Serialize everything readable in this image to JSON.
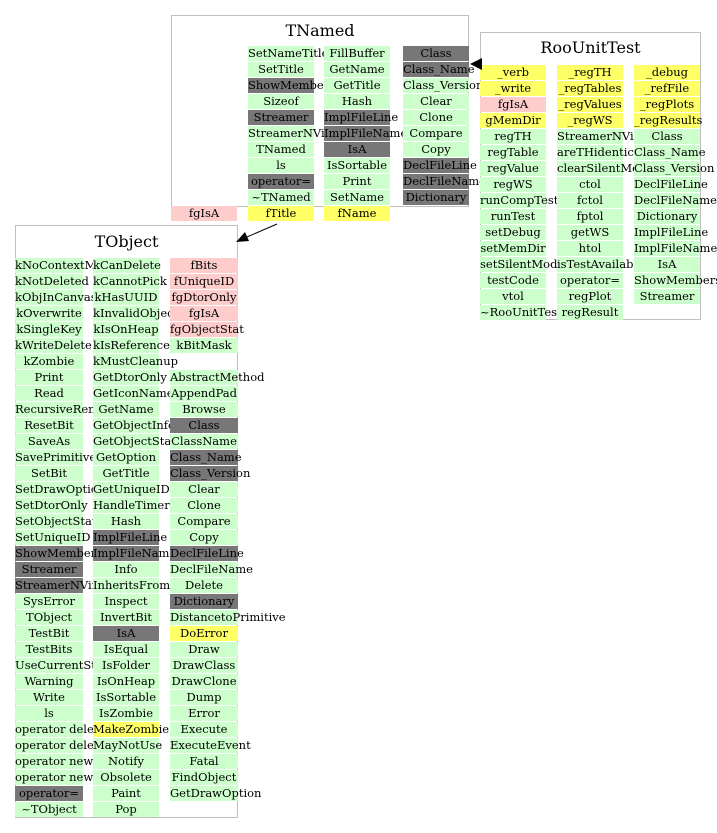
{
  "colors": {
    "public": "#ccffcc",
    "inherited": "#777777",
    "private": "#ffcccc",
    "protected": "#ffff66",
    "border": "#bfbfbf"
  },
  "classes": {
    "tnamed": {
      "title": "TNamed",
      "columns": [
        [
          {
            "t": "SetNameTitle",
            "c": "green"
          },
          {
            "t": "SetTitle",
            "c": "green"
          },
          {
            "t": "ShowMembers",
            "c": "gray"
          },
          {
            "t": "Sizeof",
            "c": "green"
          },
          {
            "t": "Streamer",
            "c": "gray"
          },
          {
            "t": "StreamerNVirtual",
            "c": "green"
          },
          {
            "t": "TNamed",
            "c": "green"
          },
          {
            "t": "ls",
            "c": "green"
          },
          {
            "t": "operator=",
            "c": "gray"
          },
          {
            "t": "~TNamed",
            "c": "green"
          },
          {
            "t": "fTitle",
            "c": "yellow"
          }
        ],
        [
          {
            "t": "FillBuffer",
            "c": "green"
          },
          {
            "t": "GetName",
            "c": "green"
          },
          {
            "t": "GetTitle",
            "c": "green"
          },
          {
            "t": "Hash",
            "c": "green"
          },
          {
            "t": "ImplFileLine",
            "c": "gray"
          },
          {
            "t": "ImplFileName",
            "c": "gray"
          },
          {
            "t": "IsA",
            "c": "gray"
          },
          {
            "t": "IsSortable",
            "c": "green"
          },
          {
            "t": "Print",
            "c": "green"
          },
          {
            "t": "SetName",
            "c": "green"
          },
          {
            "t": "fName",
            "c": "yellow"
          }
        ],
        [
          {
            "t": "Class",
            "c": "gray"
          },
          {
            "t": "Class_Name",
            "c": "gray"
          },
          {
            "t": "Class_Version",
            "c": "green"
          },
          {
            "t": "Clear",
            "c": "green"
          },
          {
            "t": "Clone",
            "c": "green"
          },
          {
            "t": "Compare",
            "c": "green"
          },
          {
            "t": "Copy",
            "c": "green"
          },
          {
            "t": "DeclFileLine",
            "c": "gray"
          },
          {
            "t": "DeclFileName",
            "c": "gray"
          },
          {
            "t": "Dictionary",
            "c": "gray"
          }
        ]
      ],
      "outside": {
        "t": "fgIsA",
        "c": "pink"
      }
    },
    "roounittest": {
      "title": "RooUnitTest",
      "columns": [
        [
          {
            "t": "_verb",
            "c": "yellow"
          },
          {
            "t": "_write",
            "c": "yellow"
          },
          {
            "t": "fgIsA",
            "c": "pink"
          },
          {
            "t": "gMemDir",
            "c": "yellow"
          },
          {
            "t": "regTH",
            "c": "green"
          },
          {
            "t": "regTable",
            "c": "green"
          },
          {
            "t": "regValue",
            "c": "green"
          },
          {
            "t": "regWS",
            "c": "green"
          },
          {
            "t": "runCompTests",
            "c": "green"
          },
          {
            "t": "runTest",
            "c": "green"
          },
          {
            "t": "setDebug",
            "c": "green"
          },
          {
            "t": "setMemDir",
            "c": "green"
          },
          {
            "t": "setSilentMode",
            "c": "green"
          },
          {
            "t": "testCode",
            "c": "green"
          },
          {
            "t": "vtol",
            "c": "green"
          },
          {
            "t": "~RooUnitTest",
            "c": "green"
          }
        ],
        [
          {
            "t": "_regTH",
            "c": "yellow"
          },
          {
            "t": "_regTables",
            "c": "yellow"
          },
          {
            "t": "_regValues",
            "c": "yellow"
          },
          {
            "t": "_regWS",
            "c": "yellow"
          },
          {
            "t": "StreamerNVirtual",
            "c": "green"
          },
          {
            "t": "areTHidentical",
            "c": "green"
          },
          {
            "t": "clearSilentMode",
            "c": "green"
          },
          {
            "t": "ctol",
            "c": "green"
          },
          {
            "t": "fctol",
            "c": "green"
          },
          {
            "t": "fptol",
            "c": "green"
          },
          {
            "t": "getWS",
            "c": "green"
          },
          {
            "t": "htol",
            "c": "green"
          },
          {
            "t": "isTestAvailable",
            "c": "green"
          },
          {
            "t": "operator=",
            "c": "green"
          },
          {
            "t": "regPlot",
            "c": "green"
          },
          {
            "t": "regResult",
            "c": "green"
          }
        ],
        [
          {
            "t": "_debug",
            "c": "yellow"
          },
          {
            "t": "_refFile",
            "c": "yellow"
          },
          {
            "t": "_regPlots",
            "c": "yellow"
          },
          {
            "t": "_regResults",
            "c": "yellow"
          },
          {
            "t": "Class",
            "c": "green"
          },
          {
            "t": "Class_Name",
            "c": "green"
          },
          {
            "t": "Class_Version",
            "c": "green"
          },
          {
            "t": "DeclFileLine",
            "c": "green"
          },
          {
            "t": "DeclFileName",
            "c": "green"
          },
          {
            "t": "Dictionary",
            "c": "green"
          },
          {
            "t": "ImplFileLine",
            "c": "green"
          },
          {
            "t": "ImplFileName",
            "c": "green"
          },
          {
            "t": "IsA",
            "c": "green"
          },
          {
            "t": "ShowMembers",
            "c": "green"
          },
          {
            "t": "Streamer",
            "c": "green"
          }
        ]
      ]
    },
    "tobject": {
      "title": "TObject",
      "columns": [
        [
          {
            "t": "kNoContextMenu",
            "c": "green"
          },
          {
            "t": "kNotDeleted",
            "c": "green"
          },
          {
            "t": "kObjInCanvas",
            "c": "green"
          },
          {
            "t": "kOverwrite",
            "c": "green"
          },
          {
            "t": "kSingleKey",
            "c": "green"
          },
          {
            "t": "kWriteDelete",
            "c": "green"
          },
          {
            "t": "kZombie",
            "c": "green"
          },
          {
            "t": "Print",
            "c": "green"
          },
          {
            "t": "Read",
            "c": "green"
          },
          {
            "t": "RecursiveRemove",
            "c": "green"
          },
          {
            "t": "ResetBit",
            "c": "green"
          },
          {
            "t": "SaveAs",
            "c": "green"
          },
          {
            "t": "SavePrimitive",
            "c": "green"
          },
          {
            "t": "SetBit",
            "c": "green"
          },
          {
            "t": "SetDrawOption",
            "c": "green"
          },
          {
            "t": "SetDtorOnly",
            "c": "green"
          },
          {
            "t": "SetObjectStat",
            "c": "green"
          },
          {
            "t": "SetUniqueID",
            "c": "green"
          },
          {
            "t": "ShowMembers",
            "c": "gray"
          },
          {
            "t": "Streamer",
            "c": "gray"
          },
          {
            "t": "StreamerNVirtual",
            "c": "gray"
          },
          {
            "t": "SysError",
            "c": "green"
          },
          {
            "t": "TObject",
            "c": "green"
          },
          {
            "t": "TestBit",
            "c": "green"
          },
          {
            "t": "TestBits",
            "c": "green"
          },
          {
            "t": "UseCurrentStyle",
            "c": "green"
          },
          {
            "t": "Warning",
            "c": "green"
          },
          {
            "t": "Write",
            "c": "green"
          },
          {
            "t": "ls",
            "c": "green"
          },
          {
            "t": "operator delete",
            "c": "green"
          },
          {
            "t": "operator delete[]",
            "c": "green"
          },
          {
            "t": "operator new",
            "c": "green"
          },
          {
            "t": "operator new[]",
            "c": "green"
          },
          {
            "t": "operator=",
            "c": "gray"
          },
          {
            "t": "~TObject",
            "c": "green"
          }
        ],
        [
          {
            "t": "kCanDelete",
            "c": "green"
          },
          {
            "t": "kCannotPick",
            "c": "green"
          },
          {
            "t": "kHasUUID",
            "c": "green"
          },
          {
            "t": "kInvalidObject",
            "c": "green"
          },
          {
            "t": "kIsOnHeap",
            "c": "green"
          },
          {
            "t": "kIsReferenced",
            "c": "green"
          },
          {
            "t": "kMustCleanup",
            "c": "green"
          },
          {
            "t": "GetDtorOnly",
            "c": "green"
          },
          {
            "t": "GetIconName",
            "c": "green"
          },
          {
            "t": "GetName",
            "c": "green"
          },
          {
            "t": "GetObjectInfo",
            "c": "green"
          },
          {
            "t": "GetObjectStat",
            "c": "green"
          },
          {
            "t": "GetOption",
            "c": "green"
          },
          {
            "t": "GetTitle",
            "c": "green"
          },
          {
            "t": "GetUniqueID",
            "c": "green"
          },
          {
            "t": "HandleTimer",
            "c": "green"
          },
          {
            "t": "Hash",
            "c": "green"
          },
          {
            "t": "ImplFileLine",
            "c": "gray"
          },
          {
            "t": "ImplFileName",
            "c": "gray"
          },
          {
            "t": "Info",
            "c": "green"
          },
          {
            "t": "InheritsFrom",
            "c": "green"
          },
          {
            "t": "Inspect",
            "c": "green"
          },
          {
            "t": "InvertBit",
            "c": "green"
          },
          {
            "t": "IsA",
            "c": "gray"
          },
          {
            "t": "IsEqual",
            "c": "green"
          },
          {
            "t": "IsFolder",
            "c": "green"
          },
          {
            "t": "IsOnHeap",
            "c": "green"
          },
          {
            "t": "IsSortable",
            "c": "green"
          },
          {
            "t": "IsZombie",
            "c": "green"
          },
          {
            "t": "MakeZombie",
            "c": "yellow"
          },
          {
            "t": "MayNotUse",
            "c": "green"
          },
          {
            "t": "Notify",
            "c": "green"
          },
          {
            "t": "Obsolete",
            "c": "green"
          },
          {
            "t": "Paint",
            "c": "green"
          },
          {
            "t": "Pop",
            "c": "green"
          }
        ],
        [
          {
            "t": "fBits",
            "c": "pink"
          },
          {
            "t": "fUniqueID",
            "c": "pink"
          },
          {
            "t": "fgDtorOnly",
            "c": "pink"
          },
          {
            "t": "fgIsA",
            "c": "pink"
          },
          {
            "t": "fgObjectStat",
            "c": "pink"
          },
          {
            "t": "kBitMask",
            "c": "green"
          },
          {
            "t": "",
            "c": "none"
          },
          {
            "t": "AbstractMethod",
            "c": "green"
          },
          {
            "t": "AppendPad",
            "c": "green"
          },
          {
            "t": "Browse",
            "c": "green"
          },
          {
            "t": "Class",
            "c": "gray"
          },
          {
            "t": "ClassName",
            "c": "green"
          },
          {
            "t": "Class_Name",
            "c": "gray"
          },
          {
            "t": "Class_Version",
            "c": "gray"
          },
          {
            "t": "Clear",
            "c": "green"
          },
          {
            "t": "Clone",
            "c": "green"
          },
          {
            "t": "Compare",
            "c": "green"
          },
          {
            "t": "Copy",
            "c": "green"
          },
          {
            "t": "DeclFileLine",
            "c": "gray"
          },
          {
            "t": "DeclFileName",
            "c": "green"
          },
          {
            "t": "Delete",
            "c": "green"
          },
          {
            "t": "Dictionary",
            "c": "gray"
          },
          {
            "t": "DistancetoPrimitive",
            "c": "green"
          },
          {
            "t": "DoError",
            "c": "yellow"
          },
          {
            "t": "Draw",
            "c": "green"
          },
          {
            "t": "DrawClass",
            "c": "green"
          },
          {
            "t": "DrawClone",
            "c": "green"
          },
          {
            "t": "Dump",
            "c": "green"
          },
          {
            "t": "Error",
            "c": "green"
          },
          {
            "t": "Execute",
            "c": "green"
          },
          {
            "t": "ExecuteEvent",
            "c": "green"
          },
          {
            "t": "Fatal",
            "c": "green"
          },
          {
            "t": "FindObject",
            "c": "green"
          },
          {
            "t": "GetDrawOption",
            "c": "green"
          }
        ]
      ]
    }
  }
}
